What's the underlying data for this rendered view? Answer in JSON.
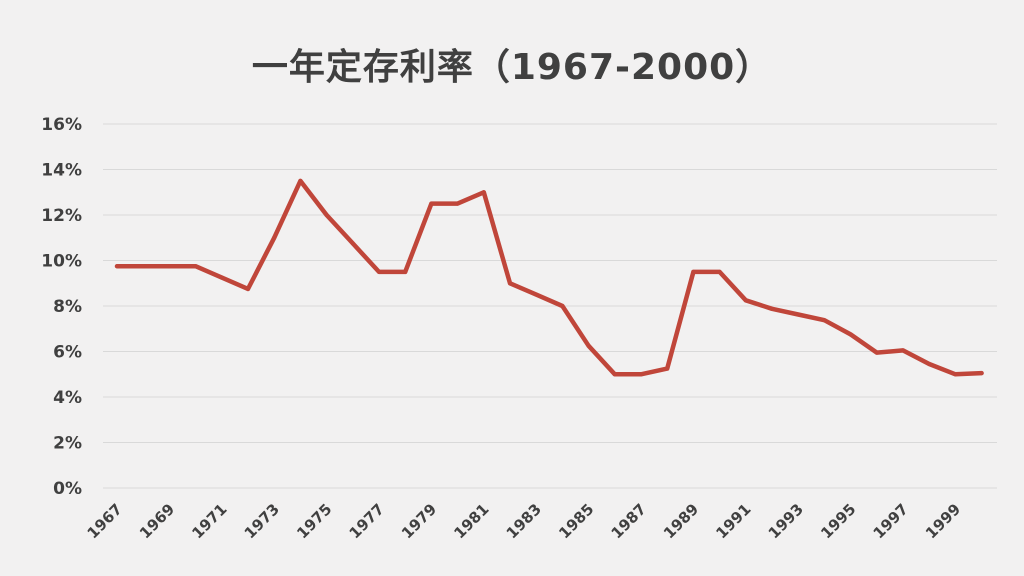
{
  "chart_data": {
    "type": "line",
    "title": "一年定存利率（1967-2000）",
    "xlabel": "",
    "ylabel": "",
    "ylim": [
      0,
      16
    ],
    "grid": true,
    "color": "#c0463a",
    "y_tick_labels": [
      "0%",
      "2%",
      "4%",
      "6%",
      "8%",
      "10%",
      "12%",
      "14%",
      "16%"
    ],
    "x_tick_labels": [
      "1967",
      "1969",
      "1971",
      "1973",
      "1975",
      "1977",
      "1979",
      "1981",
      "1983",
      "1985",
      "1987",
      "1989",
      "1991",
      "1993",
      "1995",
      "1997",
      "1999"
    ],
    "x": [
      1967,
      1968,
      1969,
      1970,
      1971,
      1972,
      1973,
      1974,
      1975,
      1976,
      1977,
      1978,
      1979,
      1980,
      1981,
      1982,
      1983,
      1984,
      1985,
      1986,
      1987,
      1988,
      1989,
      1990,
      1991,
      1992,
      1993,
      1994,
      1995,
      1996,
      1997,
      1998,
      1999,
      2000
    ],
    "values": [
      9.75,
      9.75,
      9.75,
      9.75,
      9.25,
      8.75,
      11.0,
      13.5,
      12.0,
      10.75,
      9.5,
      9.5,
      12.5,
      12.5,
      13.0,
      9.0,
      8.5,
      8.0,
      6.25,
      5.0,
      5.0,
      5.25,
      9.5,
      9.5,
      8.25,
      7.875,
      7.625,
      7.375,
      6.75,
      5.95,
      6.05,
      5.45,
      5.0,
      5.05
    ]
  }
}
